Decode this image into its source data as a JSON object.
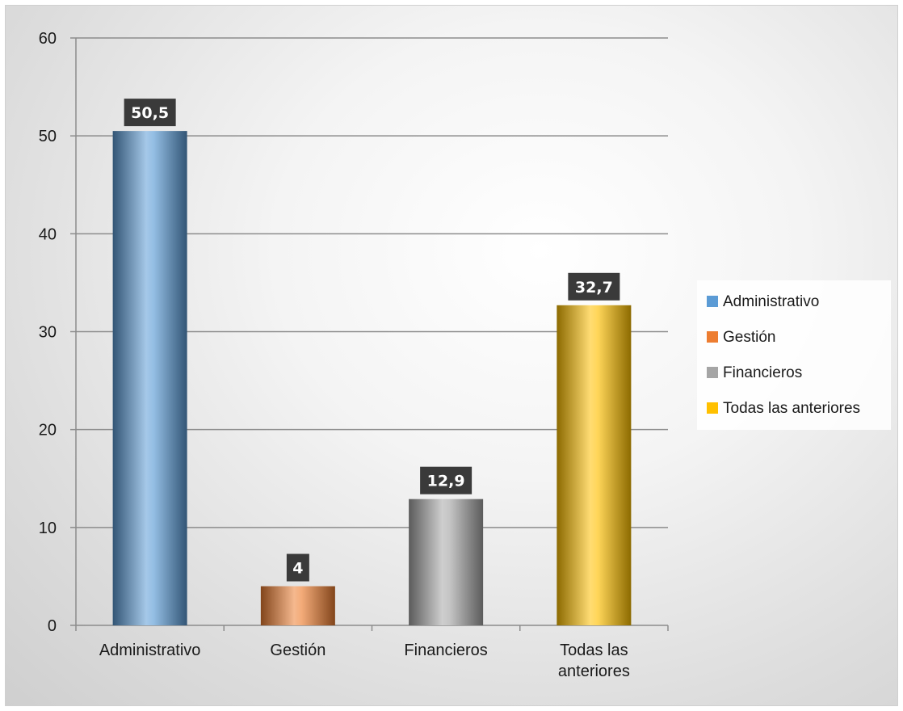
{
  "chart_data": {
    "type": "bar",
    "title": "",
    "xlabel": "",
    "ylabel": "",
    "categories": [
      "Administrativo",
      "Gestión",
      "Financieros",
      "Todas las anteriores"
    ],
    "category_label_lines": [
      [
        "Administrativo"
      ],
      [
        "Gestión"
      ],
      [
        "Financieros"
      ],
      [
        "Todas las",
        "anteriores"
      ]
    ],
    "values": [
      50.5,
      4,
      12.9,
      32.7
    ],
    "data_labels": [
      "50,5",
      "4",
      "12,9",
      "32,7"
    ],
    "ylim": [
      0,
      60
    ],
    "yticks": [
      0,
      10,
      20,
      30,
      40,
      50,
      60
    ],
    "grid": true,
    "legend_position": "right",
    "legend": [
      "Administrativo",
      "Gestión",
      "Financieros",
      "Todas las anteriores"
    ],
    "colors": [
      "#5B9BD5",
      "#ED7D31",
      "#A5A5A5",
      "#FFC000"
    ]
  }
}
